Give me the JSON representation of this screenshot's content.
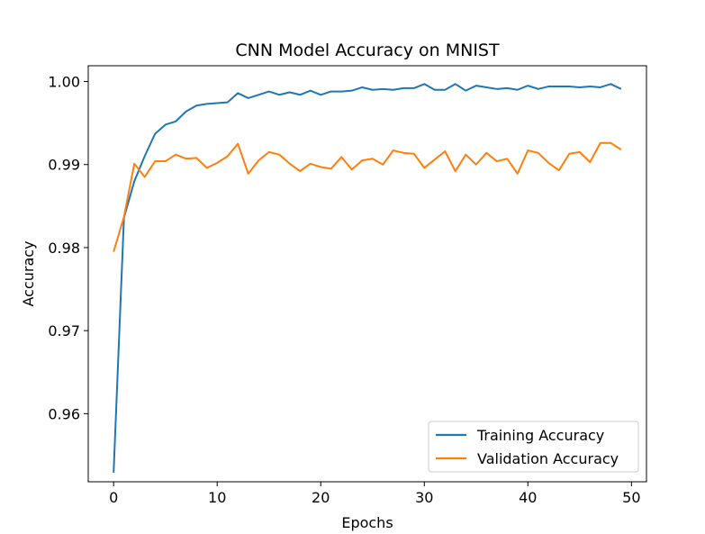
{
  "chart_data": {
    "type": "line",
    "title": "CNN Model Accuracy on MNIST",
    "xlabel": "Epochs",
    "ylabel": "Accuracy",
    "xlim": [
      -2.45,
      51.45
    ],
    "ylim": [
      0.9518,
      1.0019
    ],
    "xticks": [
      0,
      10,
      20,
      30,
      40,
      50
    ],
    "xtick_labels": [
      "0",
      "10",
      "20",
      "30",
      "40",
      "50"
    ],
    "yticks": [
      0.96,
      0.97,
      0.98,
      0.99,
      1.0
    ],
    "ytick_labels": [
      "0.96",
      "0.97",
      "0.98",
      "0.99",
      "1.00"
    ],
    "grid": false,
    "legend_position": "lower-right",
    "x": [
      0,
      1,
      2,
      3,
      4,
      5,
      6,
      7,
      8,
      9,
      10,
      11,
      12,
      13,
      14,
      15,
      16,
      17,
      18,
      19,
      20,
      21,
      22,
      23,
      24,
      25,
      26,
      27,
      28,
      29,
      30,
      31,
      32,
      33,
      34,
      35,
      36,
      37,
      38,
      39,
      40,
      41,
      42,
      43,
      44,
      45,
      46,
      47,
      48,
      49
    ],
    "series": [
      {
        "name": "Training Accuracy",
        "color": "#1f77b4",
        "values": [
          0.9529,
          0.9836,
          0.988,
          0.991,
          0.9937,
          0.9948,
          0.9952,
          0.9964,
          0.9971,
          0.9973,
          0.9974,
          0.9975,
          0.9986,
          0.998,
          0.9984,
          0.9988,
          0.9984,
          0.9987,
          0.9984,
          0.9989,
          0.9984,
          0.9988,
          0.9988,
          0.9989,
          0.9993,
          0.999,
          0.9991,
          0.999,
          0.9992,
          0.9992,
          0.9997,
          0.999,
          0.999,
          0.9997,
          0.9989,
          0.9995,
          0.9993,
          0.9991,
          0.9992,
          0.999,
          0.9995,
          0.9991,
          0.9994,
          0.9994,
          0.9994,
          0.9993,
          0.9994,
          0.9993,
          0.9997,
          0.9991
        ]
      },
      {
        "name": "Validation Accuracy",
        "color": "#ff7f0e",
        "values": [
          0.9795,
          0.9837,
          0.9901,
          0.9885,
          0.9904,
          0.9904,
          0.9912,
          0.9907,
          0.9908,
          0.9896,
          0.9902,
          0.991,
          0.9925,
          0.9889,
          0.9905,
          0.9915,
          0.9912,
          0.9901,
          0.9892,
          0.9901,
          0.9897,
          0.9895,
          0.9909,
          0.9894,
          0.9905,
          0.9907,
          0.99,
          0.9917,
          0.9914,
          0.9913,
          0.9896,
          0.9906,
          0.9916,
          0.9892,
          0.9912,
          0.99,
          0.9914,
          0.9904,
          0.9907,
          0.9889,
          0.9917,
          0.9914,
          0.9902,
          0.9893,
          0.9913,
          0.9915,
          0.9903,
          0.9926,
          0.9926,
          0.9918
        ]
      }
    ]
  }
}
